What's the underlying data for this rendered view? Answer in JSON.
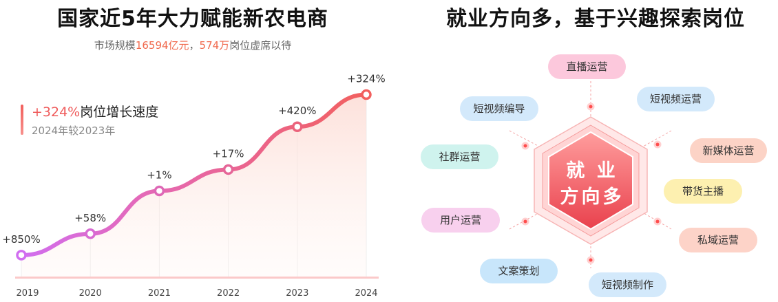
{
  "left": {
    "title": "国家近5年大力赋能新农电商",
    "subtitle_prefix": "市场规模",
    "subtitle_market": "16594亿元",
    "subtitle_sep": "，",
    "subtitle_jobs": "574万",
    "subtitle_suffix": "岗位虚席以待",
    "legend_pct": "+324%",
    "legend_text": "岗位增长速度",
    "legend_sub": "2024年较2023年"
  },
  "chart_data": {
    "type": "line",
    "categories": [
      "2019",
      "2020",
      "2021",
      "2022",
      "2023",
      "2024"
    ],
    "series": [
      {
        "values": [
          1,
          2,
          4,
          5,
          7,
          8.5
        ],
        "labels": [
          "+850%",
          "+58%",
          "+1%",
          "+17%",
          "+420%",
          "+324%"
        ]
      }
    ],
    "ylim": [
      0,
      9
    ],
    "grid": false,
    "colors": {
      "start": "#d16ef0",
      "end": "#f2605e",
      "marker_fill": "#ffffff"
    }
  },
  "right": {
    "title": "就业方向多，基于兴趣探索岗位",
    "center_line1": "就 业",
    "center_line2": "方向多",
    "roles": [
      {
        "label": "直播运营",
        "color": "#fcc8dc"
      },
      {
        "label": "短视频运营",
        "color": "#d3e9fb"
      },
      {
        "label": "新媒体运营",
        "color": "#fcd3c6"
      },
      {
        "label": "带货主播",
        "color": "#fdf0b0"
      },
      {
        "label": "私域运营",
        "color": "#fdd3c8"
      },
      {
        "label": "短视频制作",
        "color": "#d3e9fb"
      },
      {
        "label": "文案策划",
        "color": "#c8e6fb"
      },
      {
        "label": "用户运营",
        "color": "#f8d0ee"
      },
      {
        "label": "社群运营",
        "color": "#cff3ee"
      },
      {
        "label": "短视频编导",
        "color": "#d3e9fb"
      }
    ]
  }
}
